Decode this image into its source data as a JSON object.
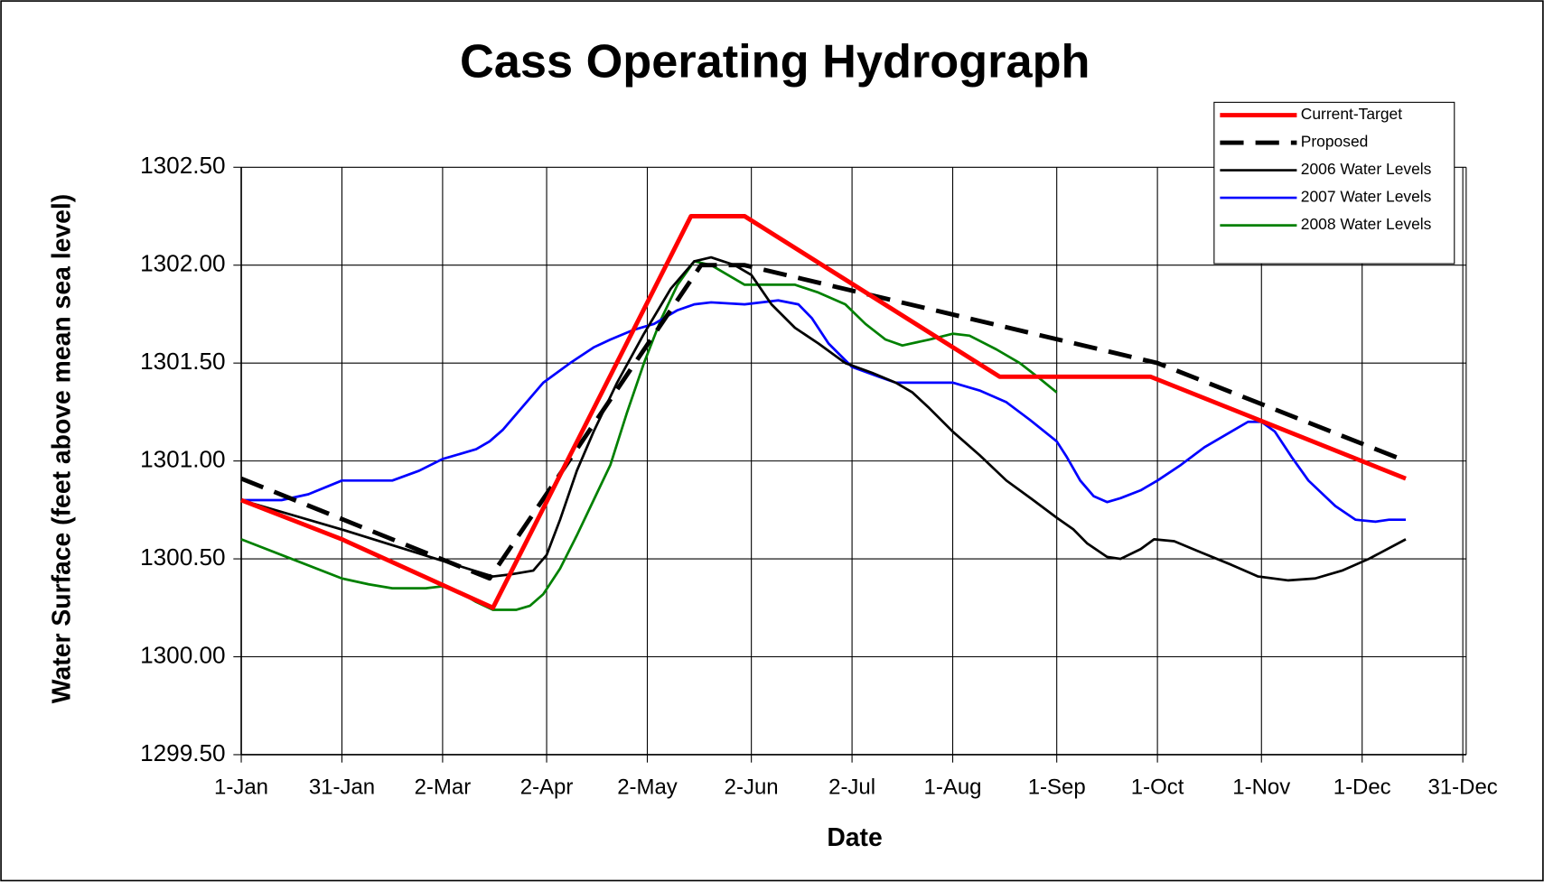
{
  "chart_data": {
    "type": "line",
    "title": "Cass Operating Hydrograph",
    "x_label": "Date",
    "y_label": "Water Surface (feet above mean sea level)",
    "xlim": [
      0,
      365
    ],
    "ylim": [
      1299.5,
      1302.5
    ],
    "xticks": [
      {
        "value": 0,
        "label": "1-Jan"
      },
      {
        "value": 30,
        "label": "31-Jan"
      },
      {
        "value": 60,
        "label": "2-Mar"
      },
      {
        "value": 91,
        "label": "2-Apr"
      },
      {
        "value": 121,
        "label": "2-May"
      },
      {
        "value": 152,
        "label": "2-Jun"
      },
      {
        "value": 182,
        "label": "2-Jul"
      },
      {
        "value": 212,
        "label": "1-Aug"
      },
      {
        "value": 243,
        "label": "1-Sep"
      },
      {
        "value": 273,
        "label": "1-Oct"
      },
      {
        "value": 304,
        "label": "1-Nov"
      },
      {
        "value": 334,
        "label": "1-Dec"
      },
      {
        "value": 364,
        "label": "31-Dec"
      }
    ],
    "yticks": [
      {
        "value": 1299.5,
        "label": "1299.50"
      },
      {
        "value": 1300,
        "label": "1300.00"
      },
      {
        "value": 1300.5,
        "label": "1300.50"
      },
      {
        "value": 1301,
        "label": "1301.00"
      },
      {
        "value": 1301.5,
        "label": "1301.50"
      },
      {
        "value": 1302,
        "label": "1302.00"
      },
      {
        "value": 1302.5,
        "label": "1302.50"
      }
    ],
    "grid": true,
    "series": [
      {
        "name": "Current-Target",
        "color": "#ff0000",
        "linewidth": 4.5,
        "style": "solid",
        "x": [
          0,
          30,
          75,
          134,
          150,
          226,
          271,
          347
        ],
        "values": [
          1300.8,
          1300.6,
          1300.25,
          1302.25,
          1302.25,
          1301.43,
          1301.43,
          1300.91
        ]
      },
      {
        "name": "Proposed",
        "color": "#000000",
        "linewidth": 4.5,
        "style": "dashed",
        "x": [
          0,
          74,
          137,
          150,
          273,
          347
        ],
        "values": [
          1300.91,
          1300.4,
          1302.0,
          1302.0,
          1301.5,
          1301.0
        ]
      },
      {
        "name": "2006 Water Levels",
        "color": "#000000",
        "linewidth": 2.5,
        "style": "solid",
        "x": [
          0,
          30,
          75,
          80,
          87,
          91,
          95,
          100,
          105,
          112,
          120,
          128,
          135,
          140,
          147,
          152,
          158,
          165,
          172,
          180,
          188,
          195,
          200,
          205,
          212,
          220,
          228,
          236,
          243,
          248,
          252,
          258,
          262,
          268,
          272,
          278,
          285,
          295,
          303,
          312,
          320,
          328,
          336,
          347
        ],
        "values": [
          1300.8,
          1300.65,
          1300.41,
          1300.42,
          1300.44,
          1300.52,
          1300.7,
          1300.95,
          1301.15,
          1301.4,
          1301.65,
          1301.88,
          1302.02,
          1302.04,
          1302.0,
          1301.95,
          1301.8,
          1301.68,
          1301.6,
          1301.5,
          1301.45,
          1301.4,
          1301.35,
          1301.27,
          1301.15,
          1301.03,
          1300.9,
          1300.8,
          1300.71,
          1300.65,
          1300.58,
          1300.51,
          1300.5,
          1300.55,
          1300.6,
          1300.59,
          1300.54,
          1300.47,
          1300.41,
          1300.39,
          1300.4,
          1300.44,
          1300.5,
          1300.6
        ]
      },
      {
        "name": "2007 Water Levels",
        "color": "#0000ff",
        "linewidth": 2.5,
        "style": "solid",
        "x": [
          0,
          12,
          20,
          30,
          45,
          53,
          60,
          70,
          74,
          78,
          84,
          90,
          98,
          105,
          110,
          117,
          123,
          130,
          135,
          140,
          150,
          160,
          166,
          170,
          175,
          182,
          190,
          195,
          212,
          220,
          228,
          235,
          243,
          246,
          250,
          254,
          258,
          262,
          268,
          273,
          280,
          287,
          295,
          300,
          304,
          308,
          313,
          318,
          326,
          332,
          338,
          342,
          347
        ],
        "values": [
          1300.8,
          1300.8,
          1300.83,
          1300.9,
          1300.9,
          1300.95,
          1301.01,
          1301.06,
          1301.1,
          1301.16,
          1301.28,
          1301.4,
          1301.5,
          1301.58,
          1301.62,
          1301.67,
          1301.7,
          1301.77,
          1301.8,
          1301.81,
          1301.8,
          1301.82,
          1301.8,
          1301.73,
          1301.6,
          1301.48,
          1301.43,
          1301.4,
          1301.4,
          1301.36,
          1301.3,
          1301.21,
          1301.1,
          1301.02,
          1300.9,
          1300.82,
          1300.79,
          1300.81,
          1300.85,
          1300.9,
          1300.98,
          1301.07,
          1301.15,
          1301.2,
          1301.2,
          1301.15,
          1301.02,
          1300.9,
          1300.77,
          1300.7,
          1300.69,
          1300.7,
          1300.7
        ]
      },
      {
        "name": "2008 Water Levels",
        "color": "#008000",
        "linewidth": 2.5,
        "style": "solid",
        "x": [
          0,
          15,
          30,
          38,
          45,
          55,
          60,
          65,
          70,
          75,
          82,
          86,
          90,
          95,
          100,
          105,
          110,
          115,
          120,
          125,
          130,
          135,
          140,
          145,
          150,
          165,
          172,
          180,
          186,
          192,
          197,
          205,
          212,
          217,
          225,
          232,
          238,
          243
        ],
        "values": [
          1300.6,
          1300.5,
          1300.4,
          1300.37,
          1300.35,
          1300.35,
          1300.36,
          1300.33,
          1300.28,
          1300.24,
          1300.24,
          1300.26,
          1300.32,
          1300.45,
          1300.62,
          1300.8,
          1300.98,
          1301.25,
          1301.5,
          1301.72,
          1301.9,
          1302.02,
          1302.0,
          1301.95,
          1301.9,
          1301.9,
          1301.86,
          1301.8,
          1301.7,
          1301.62,
          1301.59,
          1301.62,
          1301.65,
          1301.64,
          1301.57,
          1301.5,
          1301.42,
          1301.35
        ]
      }
    ]
  }
}
